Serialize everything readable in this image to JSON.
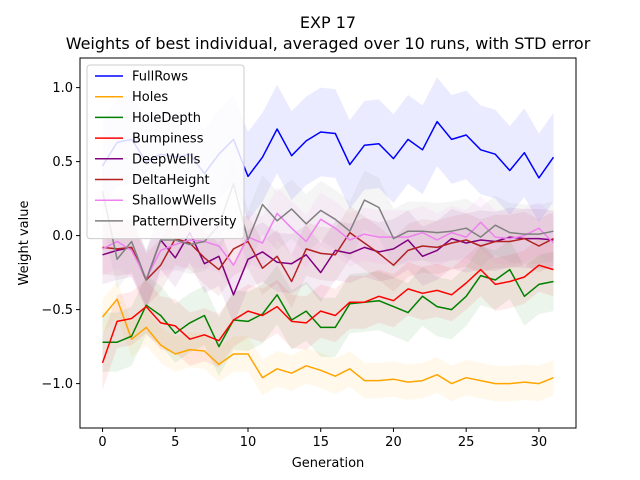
{
  "chart_data": {
    "type": "line",
    "title": "EXP 17",
    "subtitle": "Weights of best individual, averaged over 10 runs, with STD error",
    "xlabel": "Generation",
    "ylabel": "Weight value",
    "xlim": [
      -1.55,
      32.55
    ],
    "ylim": [
      -1.3,
      1.2
    ],
    "xticks": [
      0,
      5,
      10,
      15,
      20,
      25,
      30
    ],
    "yticks": [
      -1.0,
      -0.5,
      0.0,
      0.5,
      1.0
    ],
    "ytick_labels": [
      "−1.0",
      "−0.5",
      "0.0",
      "0.5",
      "1.0"
    ],
    "legend_position": "top-left",
    "grid": false,
    "x": [
      0,
      1,
      2,
      3,
      4,
      5,
      6,
      7,
      8,
      9,
      10,
      11,
      12,
      13,
      14,
      15,
      16,
      17,
      18,
      19,
      20,
      21,
      22,
      23,
      24,
      25,
      26,
      27,
      28,
      29,
      30,
      31
    ],
    "series": [
      {
        "name": "FullRows",
        "color": "#0000ff",
        "err": 0.3,
        "values": [
          0.47,
          0.63,
          0.65,
          0.5,
          0.55,
          0.53,
          0.55,
          0.42,
          0.55,
          0.65,
          0.4,
          0.53,
          0.72,
          0.54,
          0.64,
          0.7,
          0.69,
          0.48,
          0.61,
          0.62,
          0.52,
          0.65,
          0.58,
          0.77,
          0.65,
          0.68,
          0.58,
          0.55,
          0.44,
          0.56,
          0.39,
          0.53
        ]
      },
      {
        "name": "Holes",
        "color": "#ffa500",
        "err": 0.12,
        "values": [
          -0.55,
          -0.43,
          -0.7,
          -0.62,
          -0.74,
          -0.8,
          -0.77,
          -0.78,
          -0.87,
          -0.8,
          -0.8,
          -0.96,
          -0.9,
          -0.93,
          -0.88,
          -0.91,
          -0.95,
          -0.9,
          -0.98,
          -0.98,
          -0.97,
          -0.99,
          -0.98,
          -0.94,
          -1.0,
          -0.96,
          -0.98,
          -1.0,
          -1.0,
          -0.99,
          -1.0,
          -0.96
        ]
      },
      {
        "name": "HoleDepth",
        "color": "#008000",
        "err": 0.2,
        "values": [
          -0.72,
          -0.72,
          -0.68,
          -0.47,
          -0.54,
          -0.66,
          -0.59,
          -0.54,
          -0.75,
          -0.57,
          -0.58,
          -0.53,
          -0.4,
          -0.57,
          -0.51,
          -0.62,
          -0.62,
          -0.46,
          -0.45,
          -0.44,
          -0.48,
          -0.52,
          -0.41,
          -0.48,
          -0.5,
          -0.41,
          -0.27,
          -0.3,
          -0.23,
          -0.41,
          -0.33,
          -0.31
        ]
      },
      {
        "name": "Bumpiness",
        "color": "#ff0000",
        "err": 0.18,
        "values": [
          -0.86,
          -0.58,
          -0.56,
          -0.48,
          -0.59,
          -0.61,
          -0.7,
          -0.67,
          -0.71,
          -0.57,
          -0.51,
          -0.54,
          -0.48,
          -0.58,
          -0.59,
          -0.51,
          -0.54,
          -0.45,
          -0.45,
          -0.41,
          -0.44,
          -0.36,
          -0.39,
          -0.37,
          -0.4,
          -0.32,
          -0.23,
          -0.33,
          -0.31,
          -0.28,
          -0.2,
          -0.23
        ]
      },
      {
        "name": "DeepWells",
        "color": "#800080",
        "err": 0.2,
        "values": [
          -0.13,
          -0.1,
          -0.08,
          -0.3,
          -0.03,
          -0.15,
          0.02,
          -0.19,
          -0.14,
          -0.4,
          -0.16,
          -0.11,
          -0.18,
          -0.19,
          -0.13,
          -0.25,
          -0.1,
          -0.12,
          -0.08,
          -0.11,
          -0.09,
          -0.03,
          -0.14,
          -0.1,
          -0.02,
          -0.05,
          -0.03,
          -0.04,
          -0.01,
          -0.02,
          -0.02,
          -0.03
        ]
      },
      {
        "name": "DeltaHeight",
        "color": "#b22222",
        "err": 0.18,
        "values": [
          -0.08,
          -0.09,
          -0.08,
          -0.3,
          -0.2,
          -0.02,
          -0.05,
          -0.15,
          -0.23,
          -0.09,
          -0.04,
          -0.22,
          -0.14,
          -0.31,
          -0.09,
          -0.12,
          -0.13,
          0.02,
          -0.05,
          -0.12,
          -0.2,
          -0.1,
          -0.07,
          -0.08,
          -0.05,
          -0.03,
          -0.07,
          -0.04,
          -0.04,
          -0.02,
          -0.07,
          -0.02
        ]
      },
      {
        "name": "ShallowWells",
        "color": "#ee82ee",
        "err": 0.18,
        "values": [
          -0.09,
          -0.04,
          -0.1,
          -0.29,
          -0.1,
          -0.06,
          -0.03,
          -0.04,
          -0.07,
          -0.2,
          -0.01,
          -0.05,
          0.15,
          0.05,
          -0.04,
          0.11,
          0.05,
          -0.03,
          0.01,
          -0.01,
          -0.01,
          -0.01,
          0.02,
          -0.03,
          0.02,
          -0.01,
          0.09,
          -0.01,
          -0.02,
          0.0,
          0.05,
          -0.05
        ]
      },
      {
        "name": "PatternDiversity",
        "color": "#808080",
        "err": 0.2,
        "values": [
          0.3,
          -0.16,
          -0.04,
          -0.3,
          -0.03,
          -0.03,
          -0.06,
          -0.04,
          0.07,
          0.35,
          -0.03,
          0.21,
          0.1,
          0.18,
          0.08,
          0.17,
          0.11,
          0.03,
          0.24,
          0.19,
          -0.02,
          0.03,
          0.03,
          0.02,
          0.03,
          0.05,
          -0.01,
          0.07,
          0.02,
          0.01,
          0.01,
          0.03
        ]
      }
    ]
  }
}
